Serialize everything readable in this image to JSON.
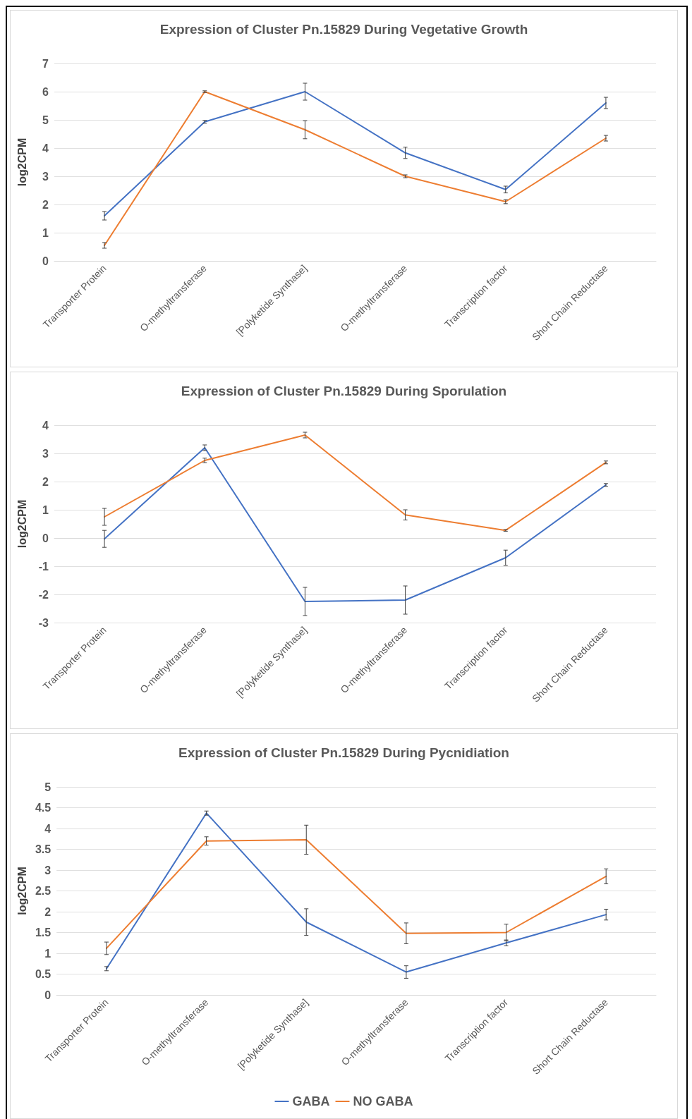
{
  "chart_data": [
    {
      "type": "line",
      "title": "Expression of Cluster Pn.15829 During Vegetative Growth",
      "ylabel": "log2CPM",
      "categories": [
        "Transporter Protein",
        "O-methyltransferase",
        "[Polyketide Synthase]",
        "O-methyltransferase",
        "Transcription factor",
        "Short Chain Reductase"
      ],
      "ylim": [
        0,
        7
      ],
      "yticks": [
        0,
        1,
        2,
        3,
        4,
        5,
        6,
        7
      ],
      "grid": "y",
      "legend": false,
      "marker": "none",
      "series": [
        {
          "color": "#4472c4",
          "values": [
            1.6,
            4.93,
            6.0,
            3.83,
            2.53,
            5.6
          ],
          "errors": [
            0.15,
            0.05,
            0.3,
            0.2,
            0.12,
            0.2
          ]
        },
        {
          "color": "#ed7d31",
          "values": [
            0.55,
            6.0,
            4.65,
            3.0,
            2.1,
            4.35
          ],
          "errors": [
            0.1,
            0.03,
            0.32,
            0.05,
            0.07,
            0.1
          ]
        }
      ]
    },
    {
      "type": "line",
      "title": "Expression of Cluster Pn.15829 During Sporulation",
      "ylabel": "log2CPM",
      "categories": [
        "Transporter Protein",
        "O-methyltransferase",
        "[Polyketide Synthase]",
        "O-methyltransferase",
        "Transcription factor",
        "Short Chain Reductase"
      ],
      "ylim": [
        -3,
        4
      ],
      "yticks": [
        -3,
        -2,
        -1,
        0,
        1,
        2,
        3,
        4
      ],
      "grid": "y",
      "legend": false,
      "marker": "none",
      "series": [
        {
          "color": "#4472c4",
          "values": [
            -0.03,
            3.2,
            -2.25,
            -2.2,
            -0.7,
            1.88
          ],
          "errors": [
            0.3,
            0.1,
            0.5,
            0.5,
            0.27,
            0.05
          ]
        },
        {
          "color": "#ed7d31",
          "values": [
            0.75,
            2.75,
            3.65,
            0.82,
            0.27,
            2.68
          ],
          "errors": [
            0.3,
            0.08,
            0.1,
            0.18,
            0.03,
            0.05
          ]
        }
      ]
    },
    {
      "type": "line",
      "title": "Expression of Cluster Pn.15829 During Pycnidiation",
      "ylabel": "log2CPM",
      "categories": [
        "Transporter Protein",
        "O-methyltransferase",
        "[Polyketide Synthase]",
        "O-methyltransferase",
        "Transcription factor",
        "Short Chain Reductase"
      ],
      "ylim": [
        0,
        5
      ],
      "yticks": [
        0,
        0.5,
        1,
        1.5,
        2,
        2.5,
        3,
        3.5,
        4,
        4.5,
        5
      ],
      "grid": "y",
      "legend": "bottom",
      "marker": "none",
      "series": [
        {
          "name": "GABA",
          "color": "#4472c4",
          "values": [
            0.63,
            4.37,
            1.75,
            0.55,
            1.25,
            1.93
          ],
          "errors": [
            0.05,
            0.05,
            0.32,
            0.15,
            0.07,
            0.13
          ]
        },
        {
          "name": "NO GABA",
          "color": "#ed7d31",
          "values": [
            1.12,
            3.7,
            3.73,
            1.48,
            1.5,
            2.85
          ],
          "errors": [
            0.15,
            0.1,
            0.35,
            0.25,
            0.2,
            0.18
          ]
        }
      ]
    }
  ]
}
